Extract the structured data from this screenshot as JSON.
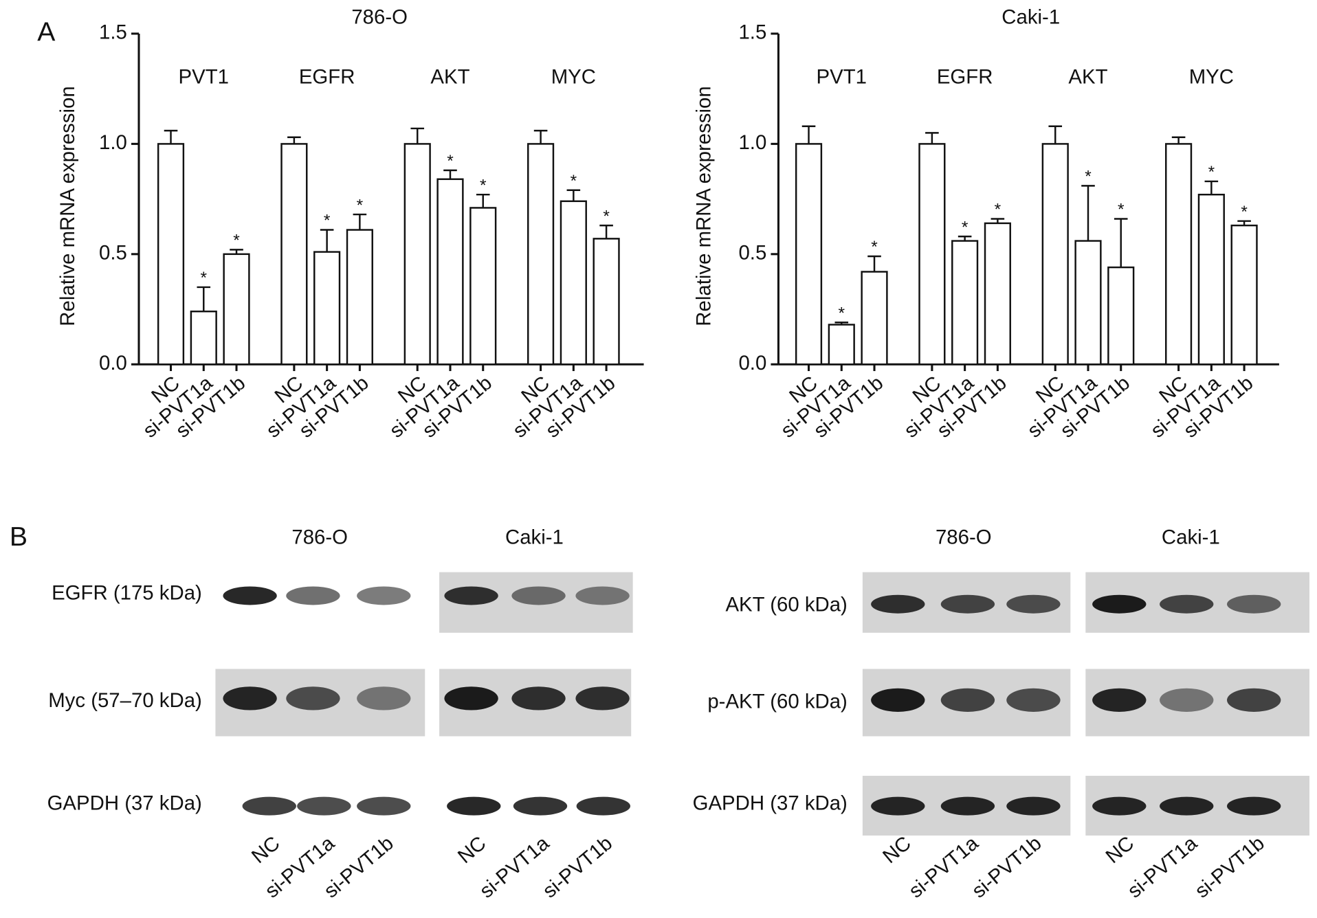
{
  "panel_labels": [
    "A",
    "B"
  ],
  "chart_data": [
    {
      "type": "bar",
      "title": "786-O",
      "ylabel": "Relative mRNA expression",
      "categories": [
        "NC",
        "si-PVT1a",
        "si-PVT1b"
      ],
      "color": "#ffffff",
      "series": [
        {
          "name": "PVT1",
          "values": [
            1.0,
            0.24,
            0.5
          ],
          "errors": [
            0.06,
            0.11,
            0.02
          ],
          "significance": [
            null,
            "*",
            "*"
          ]
        },
        {
          "name": "EGFR",
          "values": [
            1.0,
            0.51,
            0.61
          ],
          "errors": [
            0.03,
            0.1,
            0.07
          ],
          "significance": [
            null,
            "*",
            "*"
          ]
        },
        {
          "name": "AKT",
          "values": [
            1.0,
            0.84,
            0.71
          ],
          "errors": [
            0.07,
            0.04,
            0.06
          ],
          "significance": [
            null,
            "*",
            "*"
          ]
        },
        {
          "name": "MYC",
          "values": [
            1.0,
            0.74,
            0.57
          ],
          "errors": [
            0.06,
            0.05,
            0.06
          ],
          "significance": [
            null,
            "*",
            "*"
          ]
        }
      ],
      "ylim": [
        0,
        1.5
      ],
      "yticks": [
        {
          "value": 0,
          "label": "0.0"
        },
        0.5,
        {
          "value": 1,
          "label": "1.0"
        },
        1.5
      ]
    },
    {
      "type": "bar",
      "title": "Caki-1",
      "ylabel": "Relative mRNA expression",
      "categories": [
        "NC",
        "si-PVT1a",
        "si-PVT1b"
      ],
      "color": "#ffffff",
      "series": [
        {
          "name": "PVT1",
          "values": [
            1.0,
            0.18,
            0.42
          ],
          "errors": [
            0.08,
            0.01,
            0.07
          ],
          "significance": [
            null,
            "*",
            "*"
          ]
        },
        {
          "name": "EGFR",
          "values": [
            1.0,
            0.56,
            0.64
          ],
          "errors": [
            0.05,
            0.02,
            0.02
          ],
          "significance": [
            null,
            "*",
            "*"
          ]
        },
        {
          "name": "AKT",
          "values": [
            1.0,
            0.56,
            0.44
          ],
          "errors": [
            0.08,
            0.25,
            0.22
          ],
          "significance": [
            null,
            "*",
            "*"
          ]
        },
        {
          "name": "MYC",
          "values": [
            1.0,
            0.77,
            0.63
          ],
          "errors": [
            0.03,
            0.06,
            0.02
          ],
          "significance": [
            null,
            "*",
            "*"
          ]
        }
      ],
      "ylim": [
        0,
        1.5
      ],
      "yticks": [
        {
          "value": 0,
          "label": "0.0"
        },
        0.5,
        {
          "value": 1,
          "label": "1.0"
        },
        1.5
      ]
    }
  ],
  "blots": [
    {
      "columns": [
        "786-O",
        "Caki-1"
      ],
      "rows": [
        "EGFR (175 kDa)",
        "Myc (57–70 kDa)",
        "GAPDH (37 kDa)"
      ],
      "lanes": [
        "NC",
        "si-PVT1a",
        "si-PVT1b"
      ]
    },
    {
      "columns": [
        "786-O",
        "Caki-1"
      ],
      "rows": [
        "AKT (60 kDa)",
        "p-AKT (60 kDa)",
        "GAPDH (37 kDa)"
      ],
      "lanes": [
        "NC",
        "si-PVT1a",
        "si-PVT1b"
      ]
    }
  ]
}
